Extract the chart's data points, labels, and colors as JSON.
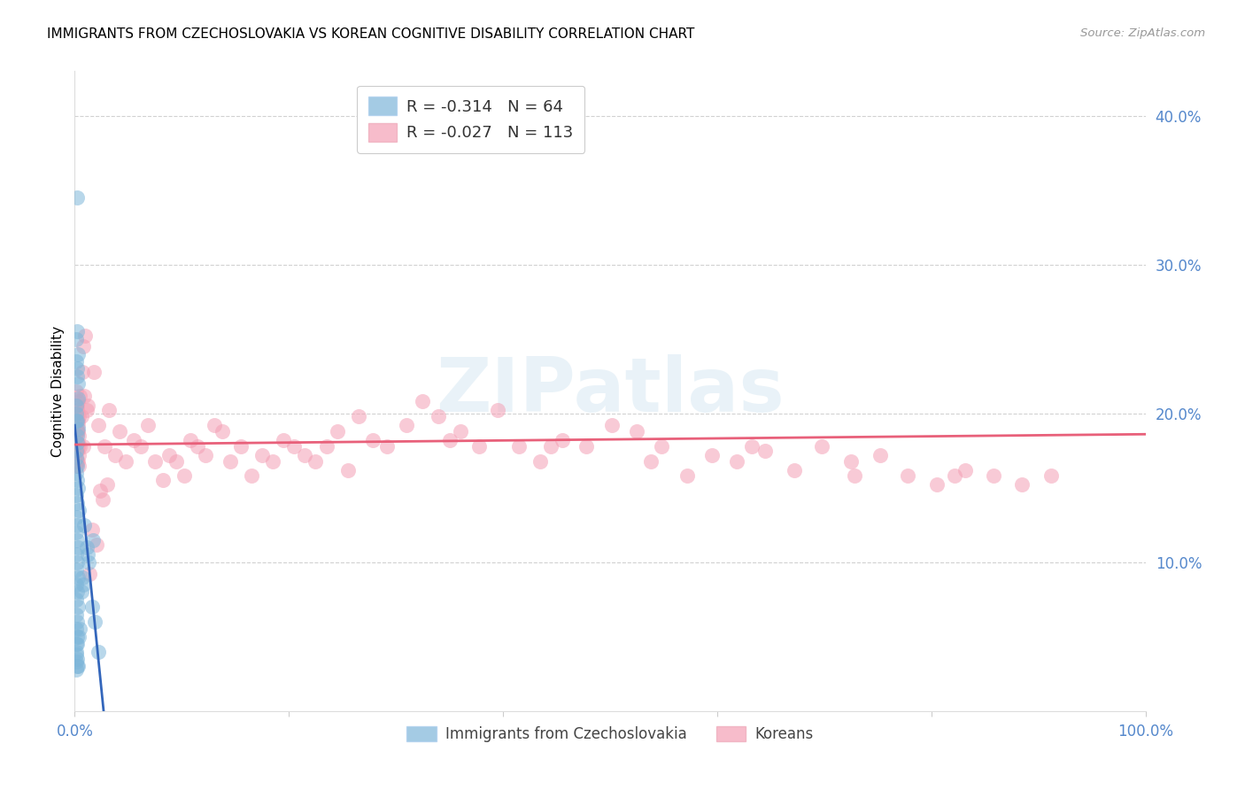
{
  "title": "IMMIGRANTS FROM CZECHOSLOVAKIA VS KOREAN COGNITIVE DISABILITY CORRELATION CHART",
  "source": "Source: ZipAtlas.com",
  "ylabel": "Cognitive Disability",
  "yaxis_ticks": [
    0.1,
    0.2,
    0.3,
    0.4
  ],
  "yaxis_labels": [
    "10.0%",
    "20.0%",
    "30.0%",
    "40.0%"
  ],
  "xlim": [
    0.0,
    1.0
  ],
  "ylim": [
    0.0,
    0.43
  ],
  "xticks": [
    0.0,
    0.2,
    0.4,
    0.6,
    0.8,
    1.0
  ],
  "xticklabels": [
    "0.0%",
    "",
    "",
    "",
    "",
    "100.0%"
  ],
  "legend_entries": [
    {
      "label": "R = -0.314   N = 64"
    },
    {
      "label": "R = -0.027   N = 113"
    }
  ],
  "legend_labels": [
    "Immigrants from Czechoslovakia",
    "Koreans"
  ],
  "blue_color": "#7EB6D9",
  "pink_color": "#F4A0B5",
  "blue_line_color": "#3366BB",
  "pink_line_color": "#E8607A",
  "watermark": "ZIPatlas",
  "title_fontsize": 11,
  "axis_label_color": "#5588CC",
  "blue_scatter_x": [
    0.002,
    0.001,
    0.002,
    0.003,
    0.002,
    0.001,
    0.002,
    0.003,
    0.001,
    0.002,
    0.001,
    0.002,
    0.003,
    0.001,
    0.002,
    0.004,
    0.001,
    0.002,
    0.001,
    0.002,
    0.003,
    0.001,
    0.002,
    0.001,
    0.003,
    0.001,
    0.002,
    0.002,
    0.003,
    0.001,
    0.001,
    0.002,
    0.001,
    0.003,
    0.001,
    0.002,
    0.001,
    0.003,
    0.001,
    0.002,
    0.001,
    0.002,
    0.001,
    0.002,
    0.001,
    0.001,
    0.002,
    0.001,
    0.002,
    0.001,
    0.009,
    0.011,
    0.013,
    0.007,
    0.017,
    0.012,
    0.016,
    0.019,
    0.008,
    0.006,
    0.004,
    0.022,
    0.005,
    0.003
  ],
  "blue_scatter_y": [
    0.345,
    0.2,
    0.195,
    0.22,
    0.185,
    0.175,
    0.18,
    0.19,
    0.17,
    0.165,
    0.16,
    0.155,
    0.15,
    0.145,
    0.14,
    0.135,
    0.13,
    0.125,
    0.12,
    0.115,
    0.11,
    0.105,
    0.255,
    0.25,
    0.24,
    0.235,
    0.23,
    0.225,
    0.21,
    0.205,
    0.195,
    0.1,
    0.095,
    0.09,
    0.085,
    0.08,
    0.075,
    0.07,
    0.065,
    0.06,
    0.055,
    0.05,
    0.045,
    0.045,
    0.04,
    0.038,
    0.035,
    0.033,
    0.03,
    0.028,
    0.125,
    0.11,
    0.1,
    0.09,
    0.115,
    0.105,
    0.07,
    0.06,
    0.085,
    0.08,
    0.05,
    0.04,
    0.055,
    0.03
  ],
  "pink_scatter_x": [
    0.001,
    0.002,
    0.003,
    0.001,
    0.002,
    0.003,
    0.004,
    0.002,
    0.001,
    0.003,
    0.002,
    0.001,
    0.003,
    0.004,
    0.002,
    0.001,
    0.003,
    0.002,
    0.004,
    0.001,
    0.005,
    0.002,
    0.003,
    0.001,
    0.002,
    0.003,
    0.004,
    0.002,
    0.001,
    0.003,
    0.008,
    0.012,
    0.018,
    0.022,
    0.028,
    0.032,
    0.038,
    0.042,
    0.048,
    0.055,
    0.062,
    0.068,
    0.075,
    0.082,
    0.088,
    0.095,
    0.102,
    0.108,
    0.115,
    0.122,
    0.13,
    0.138,
    0.145,
    0.155,
    0.165,
    0.175,
    0.185,
    0.195,
    0.205,
    0.215,
    0.225,
    0.235,
    0.245,
    0.255,
    0.265,
    0.278,
    0.292,
    0.31,
    0.325,
    0.34,
    0.36,
    0.378,
    0.395,
    0.415,
    0.435,
    0.455,
    0.478,
    0.502,
    0.525,
    0.548,
    0.572,
    0.595,
    0.618,
    0.645,
    0.672,
    0.698,
    0.725,
    0.752,
    0.778,
    0.805,
    0.832,
    0.858,
    0.885,
    0.912,
    0.35,
    0.445,
    0.538,
    0.632,
    0.728,
    0.822,
    0.01,
    0.007,
    0.005,
    0.006,
    0.008,
    0.009,
    0.011,
    0.014,
    0.016,
    0.02,
    0.024,
    0.026,
    0.03
  ],
  "pink_scatter_y": [
    0.19,
    0.205,
    0.192,
    0.182,
    0.195,
    0.178,
    0.172,
    0.168,
    0.215,
    0.2,
    0.188,
    0.178,
    0.208,
    0.185,
    0.175,
    0.168,
    0.18,
    0.188,
    0.198,
    0.165,
    0.178,
    0.188,
    0.195,
    0.182,
    0.175,
    0.168,
    0.165,
    0.202,
    0.198,
    0.188,
    0.245,
    0.205,
    0.228,
    0.192,
    0.178,
    0.202,
    0.172,
    0.188,
    0.168,
    0.182,
    0.178,
    0.192,
    0.168,
    0.155,
    0.172,
    0.168,
    0.158,
    0.182,
    0.178,
    0.172,
    0.192,
    0.188,
    0.168,
    0.178,
    0.158,
    0.172,
    0.168,
    0.182,
    0.178,
    0.172,
    0.168,
    0.178,
    0.188,
    0.162,
    0.198,
    0.182,
    0.178,
    0.192,
    0.208,
    0.198,
    0.188,
    0.178,
    0.202,
    0.178,
    0.168,
    0.182,
    0.178,
    0.192,
    0.188,
    0.178,
    0.158,
    0.172,
    0.168,
    0.175,
    0.162,
    0.178,
    0.168,
    0.172,
    0.158,
    0.152,
    0.162,
    0.158,
    0.152,
    0.158,
    0.182,
    0.178,
    0.168,
    0.178,
    0.158,
    0.158,
    0.252,
    0.228,
    0.212,
    0.198,
    0.178,
    0.212,
    0.202,
    0.092,
    0.122,
    0.112,
    0.148,
    0.142,
    0.152
  ],
  "blue_trendline_x": [
    0.0,
    0.027
  ],
  "blue_trendline_y": [
    0.192,
    0.0
  ],
  "pink_trendline_x": [
    0.0,
    1.0
  ],
  "pink_trendline_y": [
    0.179,
    0.186
  ]
}
